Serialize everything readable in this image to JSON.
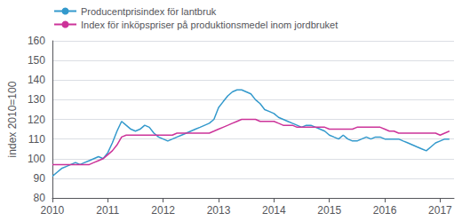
{
  "chart_data": {
    "type": "line",
    "ylabel": "index 2010=100",
    "xlim": [
      2010.0,
      2017.25
    ],
    "xticks": [
      2010,
      2011,
      2012,
      2013,
      2014,
      2015,
      2016,
      2017
    ],
    "ylim": [
      80,
      160
    ],
    "yticks": [
      80,
      90,
      100,
      110,
      120,
      130,
      140,
      150,
      160
    ],
    "grid": true,
    "legend": "top-left",
    "x": [
      2010.0,
      2010.083,
      2010.167,
      2010.25,
      2010.333,
      2010.417,
      2010.5,
      2010.583,
      2010.667,
      2010.75,
      2010.833,
      2010.917,
      2011.0,
      2011.083,
      2011.167,
      2011.25,
      2011.333,
      2011.417,
      2011.5,
      2011.583,
      2011.667,
      2011.75,
      2011.833,
      2011.917,
      2012.0,
      2012.083,
      2012.167,
      2012.25,
      2012.333,
      2012.417,
      2012.5,
      2012.583,
      2012.667,
      2012.75,
      2012.833,
      2012.917,
      2013.0,
      2013.083,
      2013.167,
      2013.25,
      2013.333,
      2013.417,
      2013.5,
      2013.583,
      2013.667,
      2013.75,
      2013.833,
      2013.917,
      2014.0,
      2014.083,
      2014.167,
      2014.25,
      2014.333,
      2014.417,
      2014.5,
      2014.583,
      2014.667,
      2014.75,
      2014.833,
      2014.917,
      2015.0,
      2015.083,
      2015.167,
      2015.25,
      2015.333,
      2015.417,
      2015.5,
      2015.583,
      2015.667,
      2015.75,
      2015.833,
      2015.917,
      2016.0,
      2016.083,
      2016.167,
      2016.25,
      2016.333,
      2016.417,
      2016.5,
      2016.583,
      2016.667,
      2016.75,
      2016.833,
      2016.917,
      2017.0,
      2017.083,
      2017.167
    ],
    "series": [
      {
        "name": "Producentprisindex för lantbruk",
        "color": "#3399CC",
        "values": [
          91,
          93,
          95,
          96,
          97,
          98,
          97,
          98,
          99,
          100,
          101,
          100,
          103,
          108,
          114,
          119,
          117,
          115,
          114,
          115,
          117,
          116,
          113,
          111,
          110,
          109,
          110,
          111,
          112,
          113,
          114,
          115,
          116,
          117,
          118,
          120,
          126,
          129,
          132,
          134,
          135,
          135,
          134,
          133,
          130,
          128,
          125,
          124,
          123,
          121,
          120,
          119,
          118,
          117,
          116,
          117,
          117,
          116,
          115,
          114,
          112,
          111,
          110,
          112,
          110,
          109,
          109,
          110,
          111,
          110,
          111,
          111,
          110,
          110,
          110,
          110,
          109,
          108,
          107,
          106,
          105,
          104,
          106,
          108,
          109,
          110,
          110
        ]
      },
      {
        "name": "Index för inköpspriser på produktionsmedel inom jordbruket",
        "color": "#CC3399",
        "values": [
          97,
          97,
          97,
          97,
          97,
          97,
          97,
          97,
          97,
          98,
          99,
          100,
          102,
          104,
          107,
          111,
          112,
          112,
          112,
          112,
          112,
          112,
          112,
          112,
          112,
          112,
          112,
          113,
          113,
          113,
          113,
          113,
          113,
          113,
          113,
          114,
          115,
          116,
          117,
          118,
          119,
          120,
          120,
          120,
          120,
          119,
          119,
          119,
          119,
          118,
          117,
          117,
          117,
          116,
          116,
          116,
          116,
          116,
          116,
          116,
          115,
          115,
          115,
          115,
          115,
          115,
          116,
          116,
          116,
          116,
          116,
          116,
          115,
          114,
          114,
          113,
          113,
          113,
          113,
          113,
          113,
          113,
          113,
          113,
          112,
          113,
          114
        ]
      }
    ]
  }
}
